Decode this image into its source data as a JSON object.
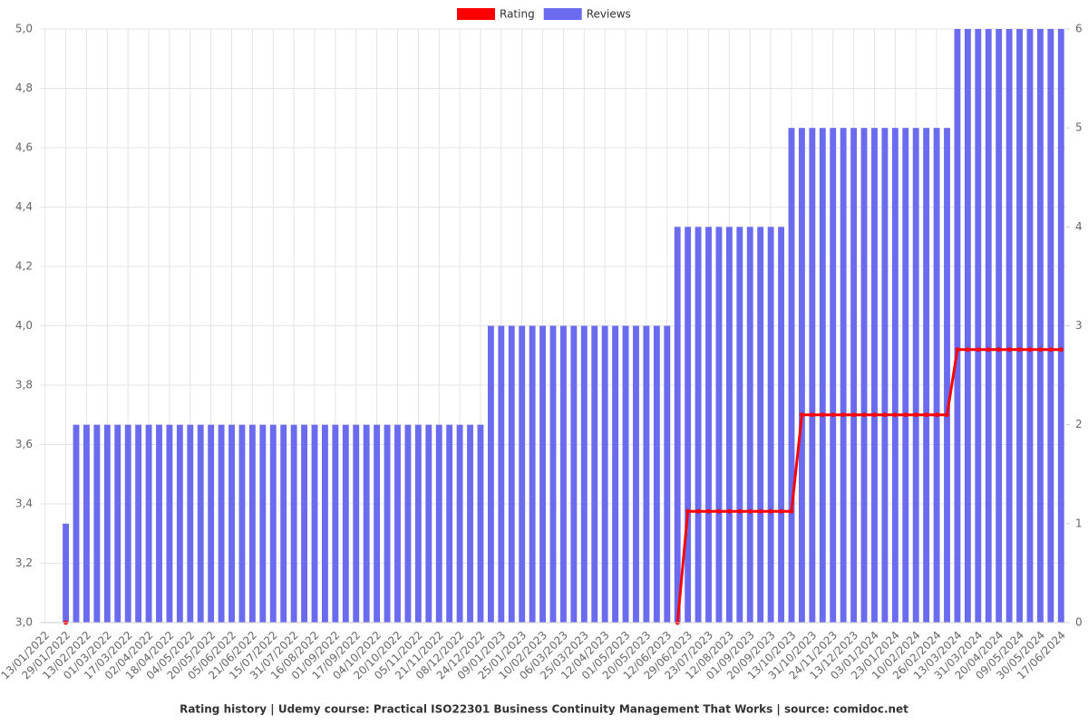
{
  "chart_data": {
    "type": "bar-line",
    "title": "Rating history | Udemy course: Practical ISO22301 Business Continuity Management That Works | source: comidoc.net",
    "categories": [
      "13/01/2022",
      null,
      "29/01/2022",
      null,
      "13/02/2022",
      null,
      "01/03/2022",
      null,
      "17/03/2022",
      null,
      "02/04/2022",
      null,
      "18/04/2022",
      null,
      "04/05/2022",
      null,
      "20/05/2022",
      null,
      "05/06/2022",
      null,
      "21/06/2022",
      null,
      "15/07/2022",
      null,
      "31/07/2022",
      null,
      "16/08/2022",
      null,
      "01/09/2022",
      null,
      "17/09/2022",
      null,
      "04/10/2022",
      null,
      "20/10/2022",
      null,
      "05/11/2022",
      null,
      "21/11/2022",
      null,
      "08/12/2022",
      null,
      "24/12/2022",
      null,
      "09/01/2023",
      null,
      "25/01/2023",
      null,
      "10/02/2023",
      null,
      "06/03/2023",
      null,
      "25/03/2023",
      null,
      "12/04/2023",
      null,
      "01/05/2023",
      null,
      "20/05/2023",
      null,
      "12/06/2023",
      null,
      "29/06/2023",
      null,
      "23/07/2023",
      null,
      "12/08/2023",
      null,
      "01/09/2023",
      null,
      "20/09/2023",
      null,
      "13/10/2023",
      null,
      "31/10/2023",
      null,
      "24/11/2023",
      null,
      "13/12/2023",
      null,
      "03/01/2024",
      null,
      "23/01/2024",
      null,
      "10/02/2024",
      null,
      "26/02/2024",
      null,
      "13/03/2024",
      null,
      "31/03/2024",
      null,
      "20/04/2024",
      null,
      "09/05/2024",
      null,
      "30/05/2024",
      null,
      "17/06/2024"
    ],
    "series": [
      {
        "name": "Rating",
        "type": "line",
        "color": "#ff0000",
        "axis": "y",
        "values": [
          null,
          null,
          3.0,
          null,
          null,
          null,
          null,
          null,
          null,
          null,
          null,
          null,
          null,
          null,
          null,
          null,
          null,
          null,
          null,
          null,
          null,
          null,
          null,
          null,
          null,
          null,
          null,
          null,
          null,
          null,
          null,
          null,
          null,
          null,
          null,
          null,
          null,
          null,
          null,
          null,
          null,
          null,
          null,
          null,
          null,
          null,
          null,
          null,
          null,
          null,
          null,
          null,
          null,
          null,
          null,
          null,
          null,
          null,
          null,
          null,
          null,
          3.0,
          3.375,
          3.375,
          3.375,
          3.375,
          3.375,
          3.375,
          3.375,
          3.375,
          3.375,
          3.375,
          3.375,
          3.7,
          3.7,
          3.7,
          3.7,
          3.7,
          3.7,
          3.7,
          3.7,
          3.7,
          3.7,
          3.7,
          3.7,
          3.7,
          3.7,
          3.7,
          3.92,
          3.92,
          3.92,
          3.92,
          3.92,
          3.92,
          3.92,
          3.92,
          3.92,
          3.92,
          3.92
        ]
      },
      {
        "name": "Reviews",
        "type": "bar",
        "color": "#6b6bef",
        "axis": "y2",
        "values": [
          0,
          0,
          1,
          2,
          2,
          2,
          2,
          2,
          2,
          2,
          2,
          2,
          2,
          2,
          2,
          2,
          2,
          2,
          2,
          2,
          2,
          2,
          2,
          2,
          2,
          2,
          2,
          2,
          2,
          2,
          2,
          2,
          2,
          2,
          2,
          2,
          2,
          2,
          2,
          2,
          2,
          2,
          2,
          3,
          3,
          3,
          3,
          3,
          3,
          3,
          3,
          3,
          3,
          3,
          3,
          3,
          3,
          3,
          3,
          3,
          3,
          4,
          4,
          4,
          4,
          4,
          4,
          4,
          4,
          4,
          4,
          4,
          5,
          5,
          5,
          5,
          5,
          5,
          5,
          5,
          5,
          5,
          5,
          5,
          5,
          5,
          5,
          5,
          6,
          6,
          6,
          6,
          6,
          6,
          6,
          6,
          6,
          6,
          6
        ]
      }
    ],
    "ylim": [
      3.0,
      5.0
    ],
    "yticks": [
      {
        "value": 3.0,
        "label": "3,0"
      },
      {
        "value": 3.2,
        "label": "3,2"
      },
      {
        "value": 3.4,
        "label": "3,4"
      },
      {
        "value": 3.6,
        "label": "3,6"
      },
      {
        "value": 3.8,
        "label": "3,8"
      },
      {
        "value": 4.0,
        "label": "4,0"
      },
      {
        "value": 4.2,
        "label": "4,2"
      },
      {
        "value": 4.4,
        "label": "4,4"
      },
      {
        "value": 4.6,
        "label": "4,6"
      },
      {
        "value": 4.8,
        "label": "4,8"
      },
      {
        "value": 5.0,
        "label": "5,0"
      }
    ],
    "y2lim": [
      0,
      6
    ],
    "y2ticks": [
      0,
      1,
      2,
      3,
      4,
      5,
      6
    ],
    "grid": true,
    "legend": "top"
  }
}
